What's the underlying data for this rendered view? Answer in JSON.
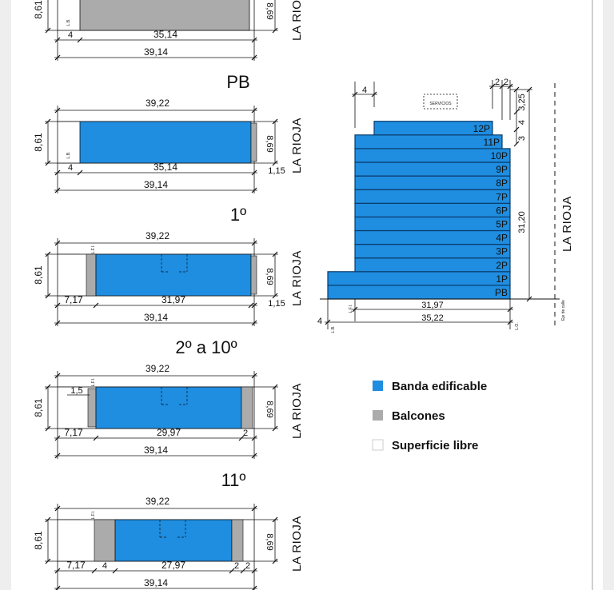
{
  "colors": {
    "buildable": "#1f8de0",
    "balcony": "#ababab",
    "free": "#ffffff",
    "line": "#111111"
  },
  "street": "LA RIOJA",
  "plans": [
    {
      "title": "",
      "d_total_top": "",
      "d_depth": "8,61",
      "d_right": "8,69",
      "lfi": "",
      "lb": "L.B.",
      "d_left": "4",
      "d_mid": "35,14",
      "d_total_bottom": "39,14",
      "d_right_small": ""
    },
    {
      "title": "PB",
      "d_total_top": "39,22",
      "d_depth": "8,61",
      "d_right": "8,69",
      "lfi": "",
      "lb": "L.B.",
      "d_left": "4",
      "d_mid": "35,14",
      "d_total_bottom": "39,14",
      "d_right_small": "1,15"
    },
    {
      "title": "1º",
      "d_total_top": "39,22",
      "d_depth": "8,61",
      "d_right": "8,69",
      "lfi": "L.F.I.",
      "lb": "",
      "d_left": "7,17",
      "d_mid": "31,97",
      "d_total_bottom": "39,14",
      "d_right_small": "1,15"
    },
    {
      "title": "2º a 10º",
      "d_total_top": "39,22",
      "d_depth": "8,61",
      "d_right": "8,69",
      "lfi": "L.F.I.",
      "lb": "",
      "d_left": "7,17",
      "d_mid": "29,97",
      "d_total_bottom": "39,14",
      "d_right_small": "2",
      "d_inner": "1,5"
    },
    {
      "title": "11º",
      "d_total_top": "39,22",
      "d_depth": "8,61",
      "d_right": "8,69",
      "lfi": "L.F.I.",
      "lb": "",
      "d_left": "7,17",
      "d_inner": "4",
      "d_mid": "27,97",
      "d_total_bottom": "39,14",
      "d_right_small": "2",
      "d_right_small2": "2"
    }
  ],
  "section": {
    "floors": [
      "PB",
      "1P",
      "2P",
      "3P",
      "4P",
      "5P",
      "6P",
      "7P",
      "8P",
      "9P",
      "10P",
      "11P",
      "12P"
    ],
    "servicios": "SERVICIOS",
    "d_top_setback": "4",
    "d_top_right": "2",
    "d_top_right2": "2",
    "d_h1": "3,25",
    "d_h2": "4",
    "d_h3": "3",
    "d_height": "31,20",
    "d_bottom_mid": "31,97",
    "d_bottom_total": "35,22",
    "d_bottom_left": "4",
    "lb": "L.B.",
    "lfi": "L.F.I.",
    "lo": "L.O.",
    "eje": "Eje de calle"
  },
  "legend": [
    {
      "label": "Banda edificable",
      "swatch": "buildable"
    },
    {
      "label": "Balcones",
      "swatch": "balcony"
    },
    {
      "label": "Superficie libre",
      "swatch": "free"
    }
  ]
}
